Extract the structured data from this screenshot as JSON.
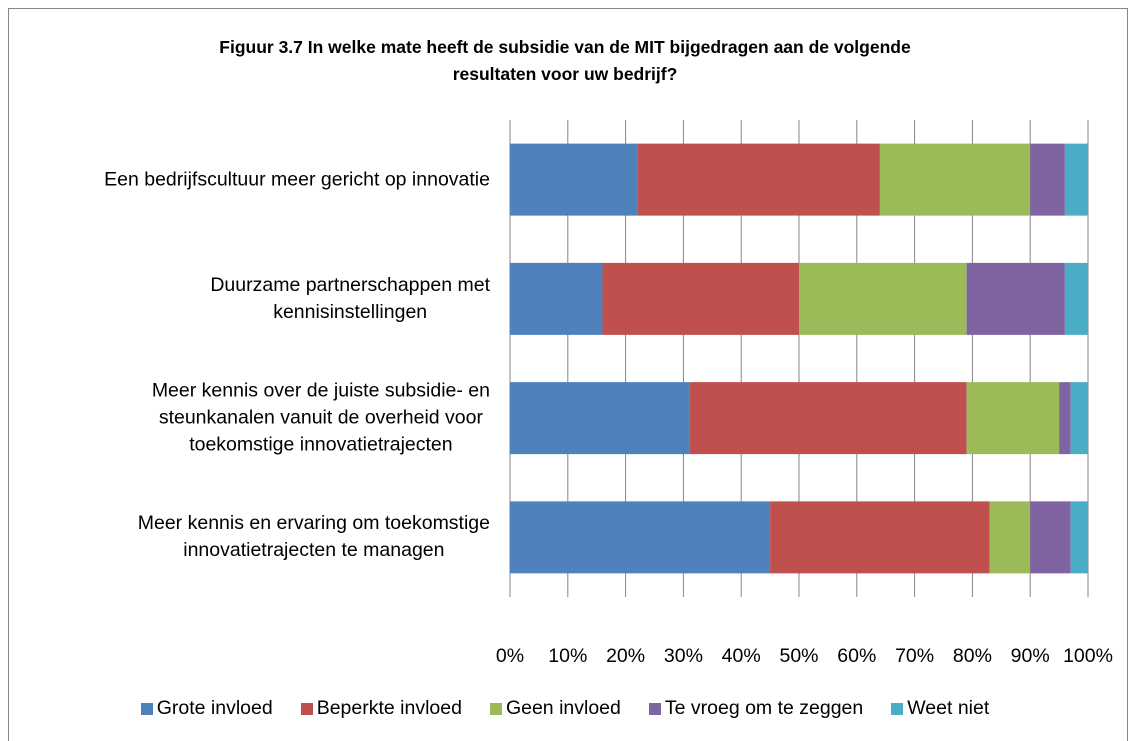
{
  "chart_data": {
    "type": "stacked_barh",
    "title": "Figuur 3.7 In welke mate heeft de subsidie van de MIT bijgedragen aan de volgende\nresultaten voor uw bedrijf?",
    "categories": [
      "Een bedrijfscultuur meer gericht op innovatie",
      "Duurzame partnerschappen met\nkennisinstellingen",
      "Meer kennis over de juiste subsidie- en\nsteunkanalen vanuit de overheid voor\ntoekomstige innovatietrajecten",
      "Meer kennis en ervaring om toekomstige\ninnovatietrajecten te managen"
    ],
    "series": [
      {
        "name": "Grote invloed",
        "color": "#4f81bd",
        "values": [
          22,
          16,
          31,
          45
        ]
      },
      {
        "name": "Beperkte invloed",
        "color": "#c0504d",
        "values": [
          42,
          34,
          48,
          38
        ]
      },
      {
        "name": "Geen invloed",
        "color": "#9bbb59",
        "values": [
          26,
          29,
          16,
          7
        ]
      },
      {
        "name": "Te vroeg om te zeggen",
        "color": "#8064a2",
        "values": [
          6,
          17,
          2,
          7
        ]
      },
      {
        "name": "Weet niet",
        "color": "#4bacc6",
        "values": [
          4,
          4,
          3,
          3
        ]
      }
    ],
    "xlim": [
      0,
      100
    ],
    "xticks": [
      {
        "value": 0,
        "label": "0%"
      },
      {
        "value": 10,
        "label": "10%"
      },
      {
        "value": 20,
        "label": "20%"
      },
      {
        "value": 30,
        "label": "30%"
      },
      {
        "value": 40,
        "label": "40%"
      },
      {
        "value": 50,
        "label": "50%"
      },
      {
        "value": 60,
        "label": "60%"
      },
      {
        "value": 70,
        "label": "70%"
      },
      {
        "value": 80,
        "label": "80%"
      },
      {
        "value": 90,
        "label": "90%"
      },
      {
        "value": 100,
        "label": "100%"
      }
    ],
    "grid": true
  }
}
